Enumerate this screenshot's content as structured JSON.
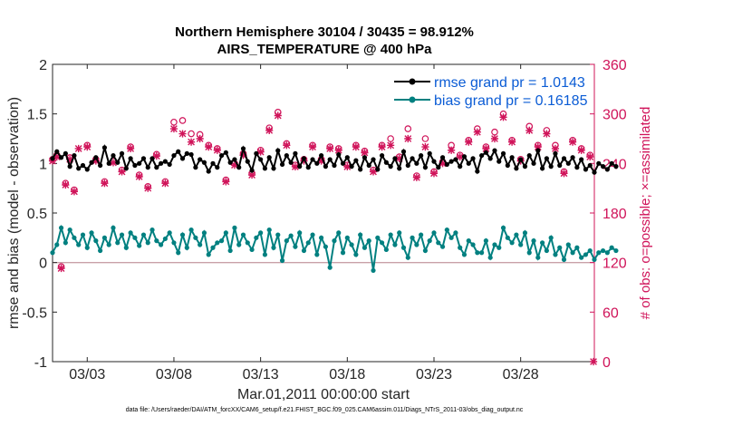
{
  "chart_data": {
    "type": "line",
    "title": "Northern Hemisphere 30104 / 30435 = 98.912%",
    "subtitle": "AIRS_TEMPERATURE @ 400 hPa",
    "xlabel": "Mar.01,2011 00:00:00 start",
    "ylabel": "rmse and bias (model - observation)",
    "y2label": "# of obs: o=possible; ×=assimilated",
    "footer": "data file: /Users/raeder/DAI/ATM_forcXX/CAM6_setup/f.e21.FHIST_BGC.f09_025.CAM6assim.011/Diags_NTrS_2011-03/obs_diag_output.nc",
    "xlim": [
      1,
      32.25
    ],
    "ylim": [
      -1,
      2
    ],
    "y2lim": [
      0,
      360
    ],
    "x_ticks": [
      3,
      8,
      13,
      18,
      23,
      28
    ],
    "x_tick_labels": [
      "03/03",
      "03/08",
      "03/13",
      "03/18",
      "03/23",
      "03/28"
    ],
    "y_ticks": [
      -1,
      -0.5,
      0,
      0.5,
      1,
      1.5,
      2
    ],
    "y_tick_labels": [
      "-1",
      "-0.5",
      "0",
      "0.5",
      "1",
      "1.5",
      "2"
    ],
    "y2_ticks": [
      0,
      60,
      120,
      180,
      240,
      300,
      360
    ],
    "y2_tick_labels": [
      "0",
      "60",
      "120",
      "180",
      "240",
      "300",
      "360"
    ],
    "legend_position": "top-right",
    "grid": false,
    "zero_line": 0,
    "series": [
      {
        "name": "rmse grand pr = 1.0143",
        "color": "#000000",
        "values": [
          1.05,
          1.12,
          1.06,
          1.1,
          0.97,
          1.08,
          0.95,
          0.98,
          0.94,
          1.01,
          1.06,
          0.98,
          1.16,
          1.0,
          1.08,
          1.01,
          1.1,
          0.95,
          1.05,
          0.98,
          1.0,
          1.05,
          0.96,
          1.05,
          0.96,
          1.0,
          1.02,
          0.99,
          1.08,
          1.12,
          1.05,
          1.1,
          1.09,
          0.96,
          1.04,
          1.01,
          0.92,
          1.0,
          0.96,
          1.08,
          1.11,
          1.01,
          1.04,
          0.96,
          1.15,
          1.02,
          0.93,
          1.1,
          1.04,
          0.95,
          1.06,
          0.95,
          1.13,
          0.99,
          1.08,
          1.01,
          1.1,
          0.97,
          1.05,
          0.96,
          1.04,
          1.0,
          1.08,
          0.97,
          1.04,
          0.98,
          1.09,
          1.0,
          1.06,
          0.97,
          1.03,
          0.94,
          1.06,
          0.98,
          1.04,
          0.94,
          1.08,
          1.01,
          0.97,
          1.05,
          0.95,
          1.12,
          0.98,
          1.05,
          1.0,
          1.08,
          0.96,
          1.1,
          1.02,
          0.96,
          1.06,
          0.99,
          1.02,
          1.04,
          0.97,
          1.07,
          1.0,
          1.05,
          0.92,
          1.08,
          1.11,
          1.05,
          1.13,
          1.02,
          1.1,
          0.98,
          1.06,
          0.95,
          1.04,
          0.97,
          1.08,
          1.0,
          1.13,
          0.95,
          1.05,
          0.97,
          1.1,
          0.98,
          1.05,
          1.0,
          1.06,
          0.96,
          1.04,
          0.94,
          0.98,
          0.91,
          1.0,
          0.97,
          0.94,
          1.0,
          0.97
        ]
      },
      {
        "name": "bias grand pr = 0.16185",
        "color": "#008080",
        "values": [
          0.1,
          0.18,
          0.35,
          0.2,
          0.33,
          0.25,
          0.18,
          0.28,
          0.15,
          0.3,
          0.22,
          0.12,
          0.25,
          0.18,
          0.35,
          0.2,
          0.28,
          0.15,
          0.3,
          0.25,
          0.17,
          0.28,
          0.2,
          0.33,
          0.22,
          0.18,
          0.24,
          0.3,
          0.2,
          0.1,
          0.28,
          0.15,
          0.33,
          0.25,
          0.18,
          0.3,
          0.08,
          0.15,
          0.2,
          0.22,
          0.3,
          0.12,
          0.35,
          0.18,
          0.28,
          0.2,
          0.13,
          0.25,
          0.3,
          0.08,
          0.33,
          0.15,
          0.28,
          0.02,
          0.22,
          0.27,
          0.16,
          0.3,
          0.12,
          0.2,
          0.28,
          0.08,
          0.25,
          0.16,
          -0.05,
          0.22,
          0.3,
          0.1,
          0.25,
          0.18,
          0.08,
          0.28,
          0.15,
          0.22,
          -0.08,
          0.25,
          0.2,
          0.13,
          0.28,
          0.18,
          0.3,
          0.15,
          0.05,
          0.25,
          0.18,
          0.28,
          0.12,
          0.22,
          0.3,
          0.2,
          0.16,
          0.33,
          0.25,
          0.3,
          0.15,
          0.08,
          0.22,
          0.18,
          0.1,
          0.1,
          0.22,
          0.05,
          0.18,
          0.15,
          0.35,
          0.25,
          0.2,
          0.28,
          0.18,
          0.3,
          0.1,
          0.22,
          0.05,
          0.2,
          0.12,
          0.25,
          0.08,
          0.15,
          0.03,
          0.18,
          0.1,
          0.15,
          0.05,
          0.08,
          0.12,
          0.03,
          0.1,
          0.12,
          0.1,
          0.15,
          0.12
        ]
      }
    ],
    "obs_possible": [
      [
        1.0,
        245
      ],
      [
        1.25,
        250
      ],
      [
        1.5,
        115
      ],
      [
        1.75,
        216
      ],
      [
        2.0,
        247
      ],
      [
        2.25,
        208
      ],
      [
        3.0,
        262
      ],
      [
        3.5,
        245
      ],
      [
        4.0,
        218
      ],
      [
        4.5,
        243
      ],
      [
        5.0,
        232
      ],
      [
        5.5,
        260
      ],
      [
        6.0,
        226
      ],
      [
        6.5,
        212
      ],
      [
        7.0,
        251
      ],
      [
        7.5,
        218
      ],
      [
        8.0,
        290
      ],
      [
        8.5,
        292
      ],
      [
        9.0,
        276
      ],
      [
        9.5,
        275
      ],
      [
        10.0,
        262
      ],
      [
        10.5,
        258
      ],
      [
        11.0,
        220
      ],
      [
        11.5,
        240
      ],
      [
        12.0,
        252
      ],
      [
        12.5,
        228
      ],
      [
        13.0,
        256
      ],
      [
        13.5,
        283
      ],
      [
        14.0,
        302
      ],
      [
        14.5,
        264
      ],
      [
        15.0,
        238
      ],
      [
        15.5,
        245
      ],
      [
        16.0,
        262
      ],
      [
        16.5,
        245
      ],
      [
        17.0,
        260
      ],
      [
        17.5,
        258
      ],
      [
        18.0,
        238
      ],
      [
        18.5,
        262
      ],
      [
        19.0,
        255
      ],
      [
        19.5,
        232
      ],
      [
        20.0,
        262
      ],
      [
        20.5,
        270
      ],
      [
        21.0,
        248
      ],
      [
        21.5,
        282
      ],
      [
        22.0,
        225
      ],
      [
        22.5,
        270
      ],
      [
        23.0,
        230
      ],
      [
        23.5,
        242
      ],
      [
        24.0,
        262
      ],
      [
        24.5,
        250
      ],
      [
        25.0,
        268
      ],
      [
        25.5,
        282
      ],
      [
        26.0,
        260
      ],
      [
        26.5,
        278
      ],
      [
        27.0,
        300
      ],
      [
        27.5,
        268
      ],
      [
        28.0,
        245
      ],
      [
        28.5,
        285
      ],
      [
        29.0,
        262
      ],
      [
        29.5,
        280
      ],
      [
        30.0,
        262
      ],
      [
        30.5,
        230
      ],
      [
        31.0,
        268
      ],
      [
        31.5,
        258
      ],
      [
        32.0,
        250
      ]
    ],
    "obs_assimilated": [
      [
        1.0,
        243
      ],
      [
        1.25,
        248
      ],
      [
        1.5,
        113
      ],
      [
        1.75,
        214
      ],
      [
        2.0,
        245
      ],
      [
        2.25,
        206
      ],
      [
        2.5,
        258
      ],
      [
        3.0,
        260
      ],
      [
        3.5,
        243
      ],
      [
        4.0,
        216
      ],
      [
        4.5,
        241
      ],
      [
        5.0,
        230
      ],
      [
        5.5,
        258
      ],
      [
        6.0,
        224
      ],
      [
        6.5,
        210
      ],
      [
        7.0,
        249
      ],
      [
        7.5,
        216
      ],
      [
        8.0,
        282
      ],
      [
        8.5,
        276
      ],
      [
        9.0,
        266
      ],
      [
        9.5,
        270
      ],
      [
        10.0,
        260
      ],
      [
        10.5,
        256
      ],
      [
        11.0,
        218
      ],
      [
        11.5,
        238
      ],
      [
        12.0,
        250
      ],
      [
        12.5,
        226
      ],
      [
        13.0,
        254
      ],
      [
        13.5,
        280
      ],
      [
        14.0,
        298
      ],
      [
        14.5,
        262
      ],
      [
        15.0,
        236
      ],
      [
        15.5,
        243
      ],
      [
        16.0,
        260
      ],
      [
        16.5,
        243
      ],
      [
        17.0,
        258
      ],
      [
        17.5,
        256
      ],
      [
        18.0,
        236
      ],
      [
        18.5,
        260
      ],
      [
        19.0,
        253
      ],
      [
        19.5,
        230
      ],
      [
        20.0,
        260
      ],
      [
        20.5,
        262
      ],
      [
        21.0,
        246
      ],
      [
        21.5,
        270
      ],
      [
        22.0,
        223
      ],
      [
        22.5,
        260
      ],
      [
        23.0,
        228
      ],
      [
        23.5,
        240
      ],
      [
        24.0,
        256
      ],
      [
        24.5,
        248
      ],
      [
        25.0,
        266
      ],
      [
        25.5,
        278
      ],
      [
        26.0,
        258
      ],
      [
        26.5,
        270
      ],
      [
        27.0,
        296
      ],
      [
        27.5,
        266
      ],
      [
        28.0,
        243
      ],
      [
        28.5,
        280
      ],
      [
        29.0,
        260
      ],
      [
        29.5,
        276
      ],
      [
        30.0,
        258
      ],
      [
        30.5,
        228
      ],
      [
        31.0,
        266
      ],
      [
        31.5,
        256
      ],
      [
        32.0,
        248
      ],
      [
        32.2,
        0
      ]
    ]
  }
}
